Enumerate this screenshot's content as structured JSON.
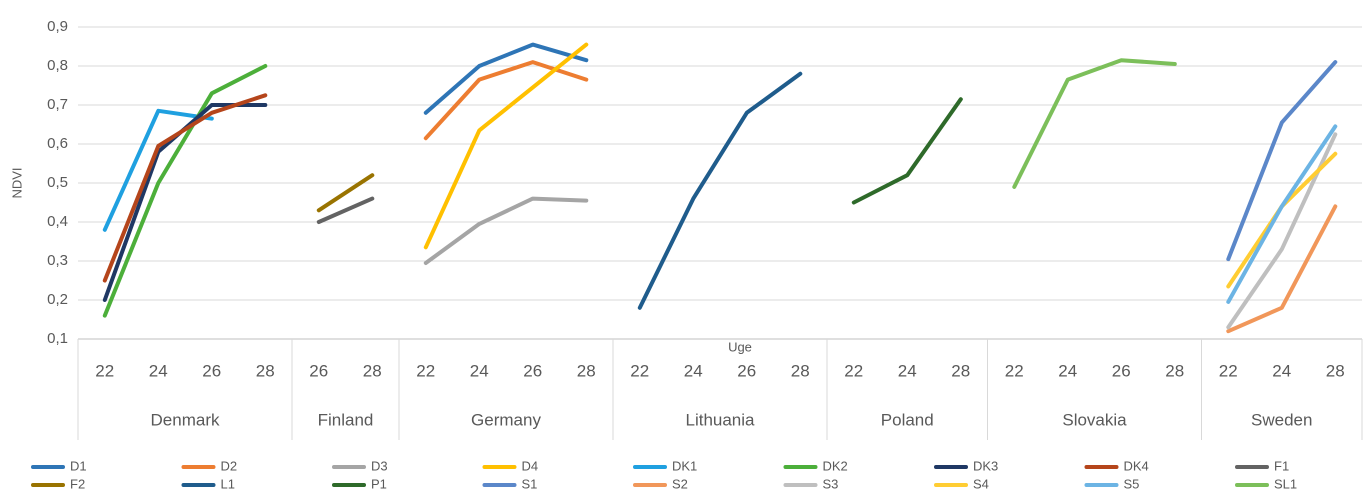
{
  "chart_data": {
    "type": "line",
    "y_label": "NDVI",
    "x_label": "Uge",
    "groups": [
      {
        "name": "Denmark",
        "categories": [
          "22",
          "24",
          "26",
          "28"
        ]
      },
      {
        "name": "Finland",
        "categories": [
          "26",
          "28"
        ]
      },
      {
        "name": "Germany",
        "categories": [
          "22",
          "24",
          "26",
          "28"
        ]
      },
      {
        "name": "Lithuania",
        "categories": [
          "22",
          "24",
          "26",
          "28"
        ]
      },
      {
        "name": "Poland",
        "categories": [
          "22",
          "24",
          "28"
        ]
      },
      {
        "name": "Slovakia",
        "categories": [
          "22",
          "24",
          "26",
          "28"
        ]
      },
      {
        "name": "Sweden",
        "categories": [
          "22",
          "24",
          "28"
        ]
      }
    ],
    "ylim": [
      0.1,
      0.9
    ],
    "yticks": [
      {
        "value": 0.1,
        "label": "0,1"
      },
      {
        "value": 0.2,
        "label": "0,2"
      },
      {
        "value": 0.3,
        "label": "0,3"
      },
      {
        "value": 0.4,
        "label": "0,4"
      },
      {
        "value": 0.5,
        "label": "0,5"
      },
      {
        "value": 0.6,
        "label": "0,6"
      },
      {
        "value": 0.7,
        "label": "0,7"
      },
      {
        "value": 0.8,
        "label": "0,8"
      },
      {
        "value": 0.9,
        "label": "0,9"
      }
    ],
    "grid": true,
    "legend": "bottom",
    "series": [
      {
        "name": "D1",
        "color": "#2E75B6",
        "values": [
          null,
          null,
          null,
          null,
          null,
          null,
          0.68,
          0.8,
          0.855,
          0.815,
          null,
          null,
          null,
          null,
          null,
          null,
          null,
          null,
          null,
          null,
          null,
          null,
          null,
          null
        ]
      },
      {
        "name": "D2",
        "color": "#ED7D31",
        "values": [
          null,
          null,
          null,
          null,
          null,
          null,
          0.615,
          0.765,
          0.81,
          0.765,
          null,
          null,
          null,
          null,
          null,
          null,
          null,
          null,
          null,
          null,
          null,
          null,
          null,
          null
        ]
      },
      {
        "name": "D3",
        "color": "#A5A5A5",
        "values": [
          null,
          null,
          null,
          null,
          null,
          null,
          0.295,
          0.395,
          0.46,
          0.455,
          null,
          null,
          null,
          null,
          null,
          null,
          null,
          null,
          null,
          null,
          null,
          null,
          null,
          null
        ]
      },
      {
        "name": "D4",
        "color": "#FFC000",
        "values": [
          null,
          null,
          null,
          null,
          null,
          null,
          0.335,
          0.635,
          0.745,
          0.855,
          null,
          null,
          null,
          null,
          null,
          null,
          null,
          null,
          null,
          null,
          null,
          null,
          null,
          null
        ]
      },
      {
        "name": "DK1",
        "color": "#1FA0E0",
        "values": [
          0.38,
          0.685,
          0.665,
          null,
          null,
          null,
          null,
          null,
          null,
          null,
          null,
          null,
          null,
          null,
          null,
          null,
          null,
          null,
          null,
          null,
          null,
          null,
          null,
          null
        ]
      },
      {
        "name": "DK2",
        "color": "#4CAF3A",
        "values": [
          0.16,
          0.5,
          0.73,
          0.8,
          null,
          null,
          null,
          null,
          null,
          null,
          null,
          null,
          null,
          null,
          null,
          null,
          null,
          null,
          null,
          null,
          null,
          null,
          null,
          null
        ]
      },
      {
        "name": "DK3",
        "color": "#1F3864",
        "values": [
          0.2,
          0.58,
          0.7,
          0.7,
          null,
          null,
          null,
          null,
          null,
          null,
          null,
          null,
          null,
          null,
          null,
          null,
          null,
          null,
          null,
          null,
          null,
          null,
          null,
          null
        ]
      },
      {
        "name": "DK4",
        "color": "#B5451B",
        "values": [
          0.25,
          0.595,
          0.68,
          0.725,
          null,
          null,
          null,
          null,
          null,
          null,
          null,
          null,
          null,
          null,
          null,
          null,
          null,
          null,
          null,
          null,
          null,
          null,
          null,
          null
        ]
      },
      {
        "name": "F1",
        "color": "#636363",
        "values": [
          null,
          null,
          null,
          null,
          0.4,
          0.46,
          null,
          null,
          null,
          null,
          null,
          null,
          null,
          null,
          null,
          null,
          null,
          null,
          null,
          null,
          null,
          null,
          null,
          null
        ]
      },
      {
        "name": "F2",
        "color": "#997300",
        "values": [
          null,
          null,
          null,
          null,
          0.43,
          0.52,
          null,
          null,
          null,
          null,
          null,
          null,
          null,
          null,
          null,
          null,
          null,
          null,
          null,
          null,
          null,
          null,
          null,
          null
        ]
      },
      {
        "name": "L1",
        "color": "#1F5C8C",
        "values": [
          null,
          null,
          null,
          null,
          null,
          null,
          null,
          null,
          null,
          null,
          0.18,
          0.46,
          0.68,
          0.78,
          null,
          null,
          null,
          null,
          null,
          null,
          null,
          null,
          null,
          null
        ]
      },
      {
        "name": "P1",
        "color": "#2E6A2A",
        "values": [
          null,
          null,
          null,
          null,
          null,
          null,
          null,
          null,
          null,
          null,
          null,
          null,
          null,
          null,
          0.45,
          0.52,
          0.715,
          null,
          null,
          null,
          null,
          null,
          null,
          null
        ]
      },
      {
        "name": "S1",
        "color": "#5B87C9",
        "values": [
          null,
          null,
          null,
          null,
          null,
          null,
          null,
          null,
          null,
          null,
          null,
          null,
          null,
          null,
          null,
          null,
          null,
          null,
          null,
          null,
          null,
          0.305,
          0.655,
          0.81
        ]
      },
      {
        "name": "S2",
        "color": "#F1975A",
        "values": [
          null,
          null,
          null,
          null,
          null,
          null,
          null,
          null,
          null,
          null,
          null,
          null,
          null,
          null,
          null,
          null,
          null,
          null,
          null,
          null,
          null,
          0.12,
          0.18,
          0.44
        ]
      },
      {
        "name": "S3",
        "color": "#BFBFBF",
        "values": [
          null,
          null,
          null,
          null,
          null,
          null,
          null,
          null,
          null,
          null,
          null,
          null,
          null,
          null,
          null,
          null,
          null,
          null,
          null,
          null,
          null,
          0.13,
          0.33,
          0.625
        ]
      },
      {
        "name": "S4",
        "color": "#FFCD33",
        "values": [
          null,
          null,
          null,
          null,
          null,
          null,
          null,
          null,
          null,
          null,
          null,
          null,
          null,
          null,
          null,
          null,
          null,
          null,
          null,
          null,
          null,
          0.235,
          0.44,
          0.575
        ]
      },
      {
        "name": "S5",
        "color": "#6CB4E4",
        "values": [
          null,
          null,
          null,
          null,
          null,
          null,
          null,
          null,
          null,
          null,
          null,
          null,
          null,
          null,
          null,
          null,
          null,
          null,
          null,
          null,
          null,
          0.195,
          0.44,
          0.645
        ]
      },
      {
        "name": "SL1",
        "color": "#7CBF5A",
        "values": [
          null,
          null,
          null,
          null,
          null,
          null,
          null,
          null,
          null,
          null,
          null,
          null,
          null,
          null,
          null,
          null,
          null,
          0.49,
          0.765,
          0.815,
          0.805,
          null,
          null,
          null
        ]
      }
    ]
  }
}
